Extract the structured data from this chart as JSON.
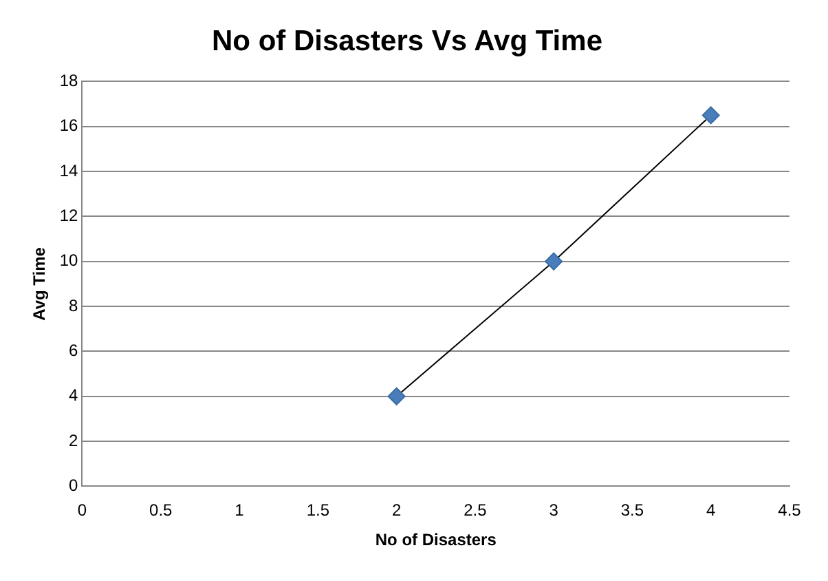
{
  "chart_data": {
    "type": "scatter",
    "title": "No of Disasters Vs Avg Time",
    "xlabel": "No of Disasters",
    "ylabel": "Avg Time",
    "xlim": [
      0,
      4.5
    ],
    "xticks": [
      0,
      0.5,
      1,
      1.5,
      2,
      2.5,
      3,
      3.5,
      4,
      4.5
    ],
    "ylim": [
      0,
      18
    ],
    "yticks": [
      0,
      2,
      4,
      6,
      8,
      10,
      12,
      14,
      16,
      18
    ],
    "grid": "y",
    "legend": false,
    "marker": "diamond",
    "series": [
      {
        "type": "line",
        "color": "#000000",
        "x": [
          2,
          3,
          4
        ],
        "values": [
          4,
          10,
          16.5
        ],
        "marker": "none"
      },
      {
        "type": "scatter",
        "color": "#4a7ebb",
        "x": [
          2,
          3,
          4
        ],
        "values": [
          4,
          10,
          16.5
        ]
      }
    ]
  }
}
